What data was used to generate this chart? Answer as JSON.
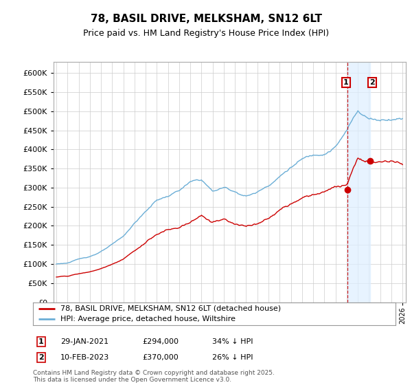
{
  "title": "78, BASIL DRIVE, MELKSHAM, SN12 6LT",
  "subtitle": "Price paid vs. HM Land Registry's House Price Index (HPI)",
  "hpi_label": "HPI: Average price, detached house, Wiltshire",
  "property_label": "78, BASIL DRIVE, MELKSHAM, SN12 6LT (detached house)",
  "hpi_color": "#6baed6",
  "property_color": "#cc0000",
  "shade_color": "#ddeeff",
  "sale1_date": "29-JAN-2021",
  "sale1_price": 294000,
  "sale1_note": "34% ↓ HPI",
  "sale2_date": "10-FEB-2023",
  "sale2_price": 370000,
  "sale2_note": "26% ↓ HPI",
  "ylim": [
    0,
    630000
  ],
  "xlim_start": 1994.75,
  "xlim_end": 2026.3,
  "footer": "Contains HM Land Registry data © Crown copyright and database right 2025.\nThis data is licensed under the Open Government Licence v3.0.",
  "background_color": "#ffffff",
  "grid_color": "#cccccc",
  "sale1_x": 2021.08,
  "sale2_x": 2023.12
}
